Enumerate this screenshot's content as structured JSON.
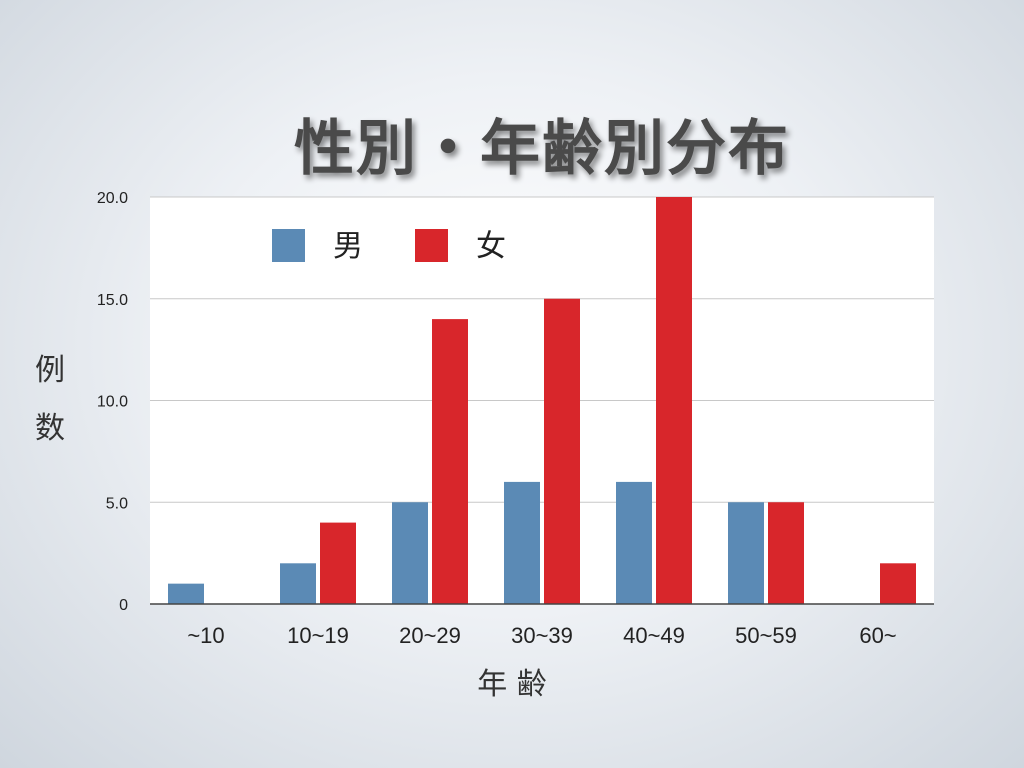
{
  "slide": {
    "title": "性別・年齢別分布"
  },
  "chart_data": {
    "type": "bar",
    "categories": [
      "~10",
      "10~19",
      "20~29",
      "30~39",
      "40~49",
      "50~59",
      "60~"
    ],
    "series": [
      {
        "name": "男",
        "color": "#5b8ab5",
        "values": [
          1,
          2,
          5,
          6,
          6,
          5,
          0
        ]
      },
      {
        "name": "女",
        "color": "#d8262b",
        "values": [
          0,
          4,
          14,
          15,
          20,
          5,
          2
        ]
      }
    ],
    "yticks": [
      "20.0",
      "15.0",
      "10.0",
      "5.0",
      "0"
    ],
    "ytick_values": [
      20,
      15,
      10,
      5,
      0
    ],
    "ylim": [
      0,
      20
    ],
    "xlabel": "年 齢",
    "ylabel_chars": [
      "例",
      "数"
    ],
    "grid": true,
    "legend_position": "top-left"
  }
}
